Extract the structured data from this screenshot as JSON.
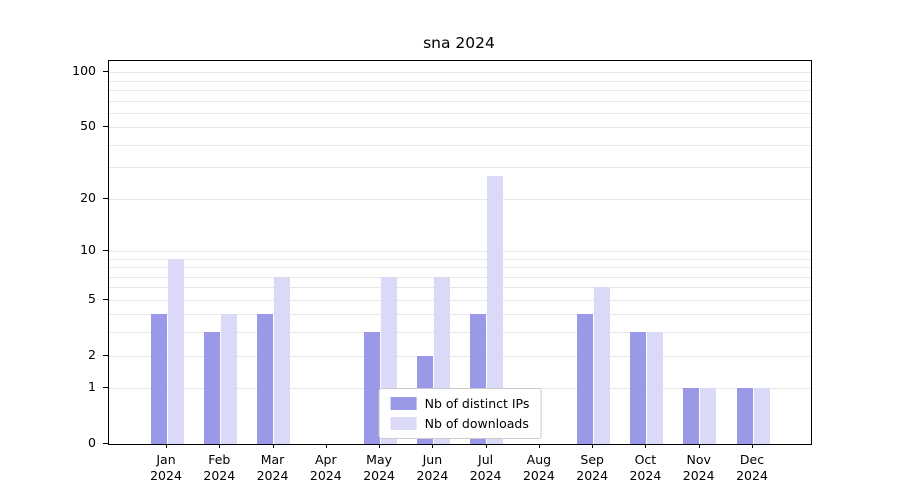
{
  "chart_data": {
    "type": "bar",
    "title": "sna 2024",
    "months": [
      "Jan",
      "Feb",
      "Mar",
      "Apr",
      "May",
      "Jun",
      "Jul",
      "Aug",
      "Sep",
      "Oct",
      "Nov",
      "Dec"
    ],
    "year": "2024",
    "series": [
      {
        "name": "Nb of distinct IPs",
        "color": "#9999e8",
        "values": [
          4,
          3,
          4,
          0,
          3,
          2,
          4,
          0,
          4,
          3,
          1,
          1
        ]
      },
      {
        "name": "Nb of downloads",
        "color": "#dadaf8",
        "values": [
          9,
          4,
          7,
          0,
          7,
          7,
          27,
          0,
          6,
          3,
          1,
          1
        ]
      }
    ],
    "y_scale": "log1p",
    "y_ticks": [
      0,
      1,
      2,
      5,
      10,
      20,
      50,
      100
    ],
    "y_gridline_values": [
      1,
      2,
      3,
      4,
      5,
      6,
      7,
      8,
      9,
      10,
      20,
      30,
      40,
      50,
      60,
      70,
      80,
      90,
      100
    ],
    "ylim": [
      0,
      115
    ],
    "xlabel": "",
    "ylabel": "",
    "grid": true,
    "legend_position": "lower center"
  },
  "colors": {
    "background": "#ffffff",
    "grid": "#e7e7e7",
    "axis": "#000000",
    "legend_border": "#cccccc"
  }
}
